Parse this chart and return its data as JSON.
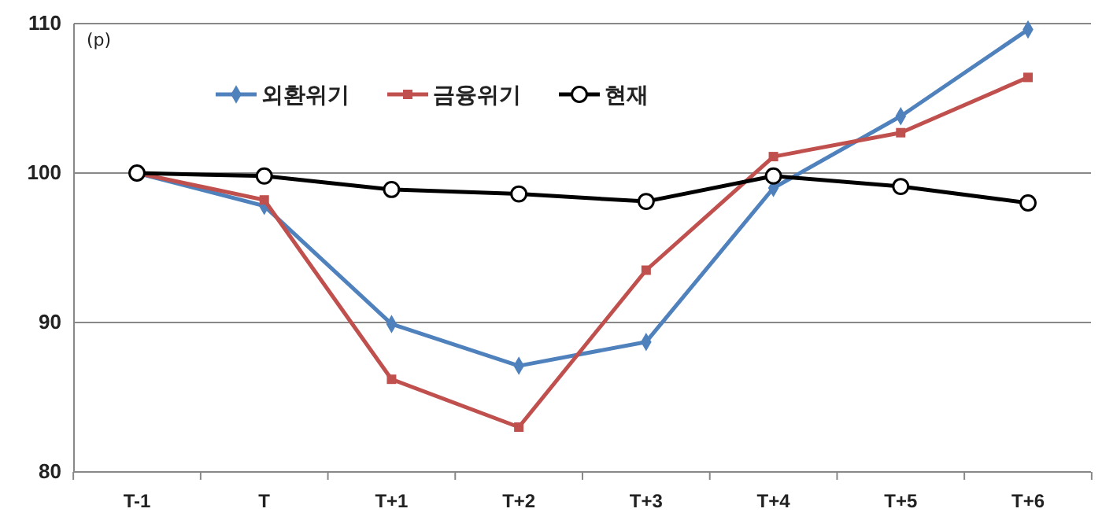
{
  "chart_data": {
    "type": "line",
    "ylabel": "(p)",
    "categories": [
      "T-1",
      "T",
      "T+1",
      "T+2",
      "T+3",
      "T+4",
      "T+5",
      "T+6"
    ],
    "series": [
      {
        "name": "외환위기",
        "color": "#4f81bd",
        "marker": "diamond",
        "values": [
          100,
          97.8,
          89.9,
          87.1,
          88.7,
          99.0,
          103.8,
          109.6
        ]
      },
      {
        "name": "금융위기",
        "color": "#c0504d",
        "marker": "square",
        "values": [
          100,
          98.2,
          86.2,
          83.0,
          93.5,
          101.1,
          102.7,
          106.4
        ]
      },
      {
        "name": "현재",
        "color": "#000000",
        "marker": "circle",
        "values": [
          100,
          99.8,
          98.9,
          98.6,
          98.1,
          99.8,
          99.1,
          98.0
        ]
      }
    ],
    "ylim": [
      80,
      110
    ],
    "yticks": [
      80,
      90,
      100,
      110
    ],
    "grid": "y",
    "legend": "top left",
    "line_style": "solid"
  }
}
